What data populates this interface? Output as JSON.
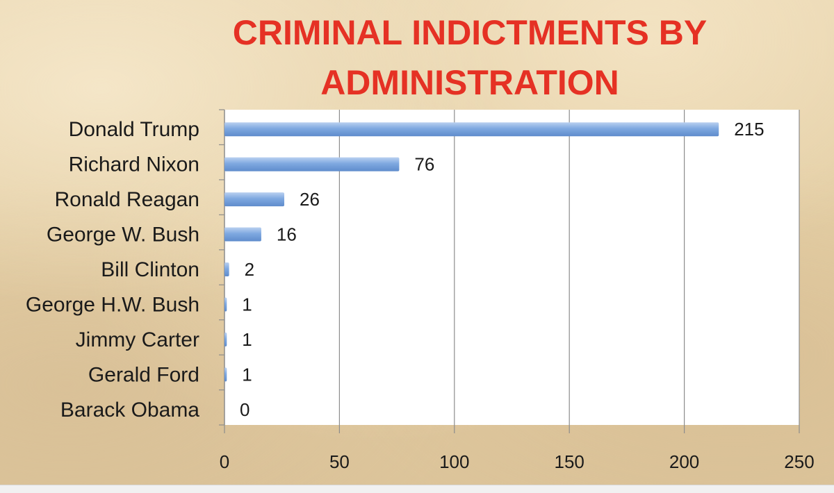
{
  "chart_data": {
    "type": "bar",
    "orientation": "horizontal",
    "title": "CRIMINAL INDICTMENTS BY ADMINISTRATION",
    "title_lines": [
      "CRIMINAL INDICTMENTS BY",
      "ADMINISTRATION"
    ],
    "categories": [
      "Donald Trump",
      "Richard Nixon",
      "Ronald Reagan",
      "George W. Bush",
      "Bill Clinton",
      "George H.W. Bush",
      "Jimmy Carter",
      "Gerald Ford",
      "Barack Obama"
    ],
    "values": [
      215,
      76,
      26,
      16,
      2,
      1,
      1,
      1,
      0
    ],
    "data_labels": [
      "215",
      "76",
      "26",
      "16",
      "2",
      "1",
      "1",
      "1",
      "0"
    ],
    "xlim": [
      0,
      250
    ],
    "xticks": [
      0,
      50,
      100,
      150,
      200,
      250
    ],
    "xtick_labels": [
      "0",
      "50",
      "100",
      "150",
      "200",
      "250"
    ],
    "grid": "vertical",
    "legend": "none",
    "colors": {
      "title": "#e53124",
      "bar": "#7ea8e0",
      "bar_highlight": "#b9d0f0",
      "bar_shadow": "#5f8ccc",
      "plot_background": "#ffffff",
      "grid": "#8c8c8c",
      "text": "#1a1a1a"
    }
  }
}
